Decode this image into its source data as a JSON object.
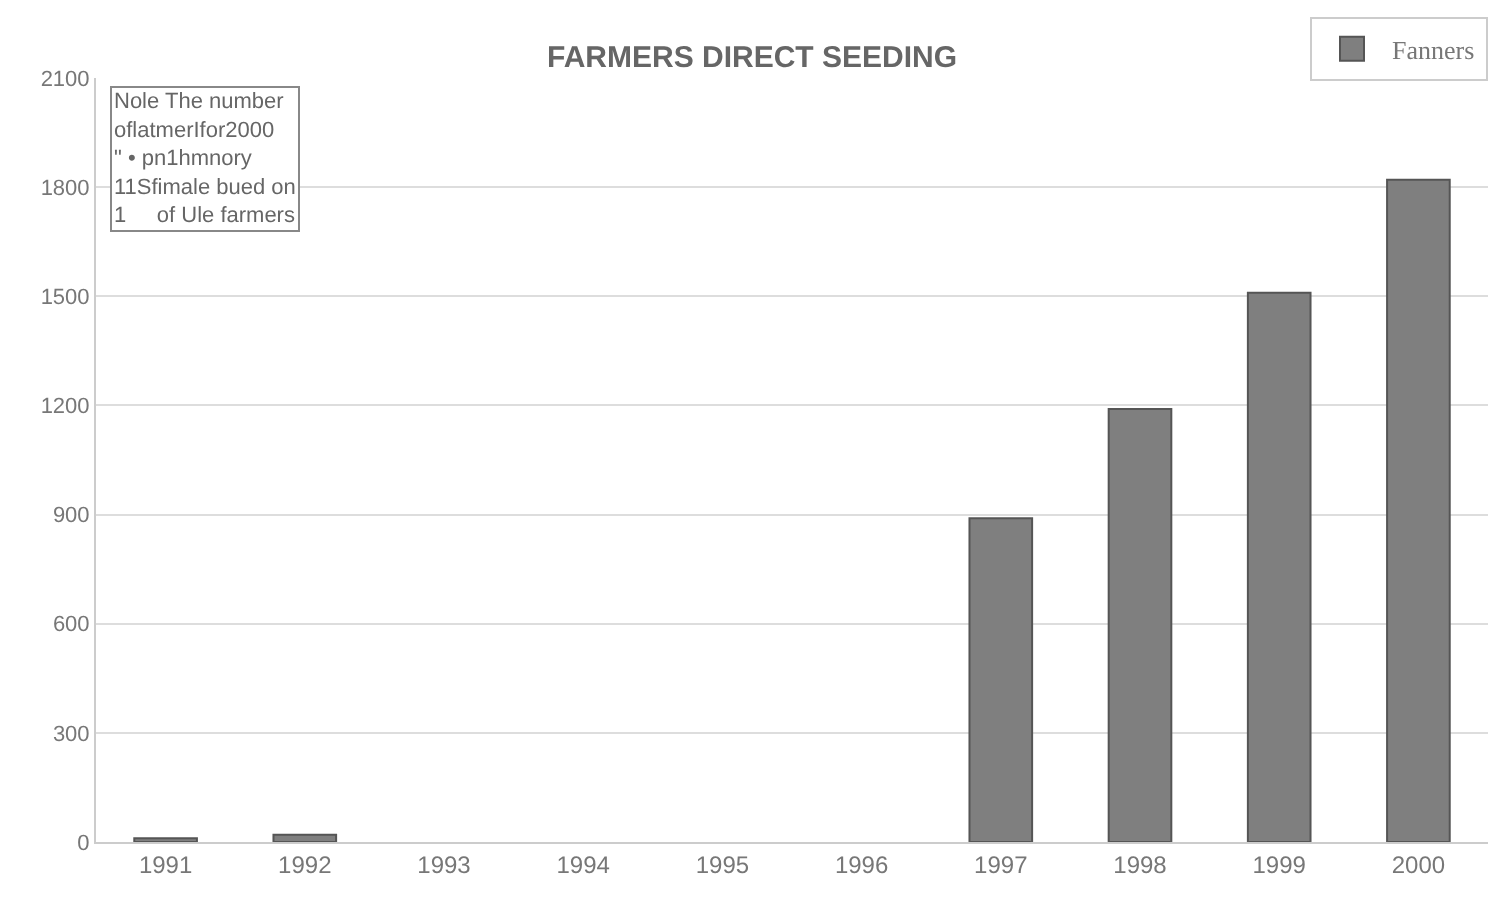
{
  "chart_data": {
    "type": "bar",
    "title": "FARMERS DIRECT SEEDING",
    "categories": [
      "1991",
      "1992",
      "1993",
      "1994",
      "1995",
      "1996",
      "1997",
      "1998",
      "1999",
      "2000"
    ],
    "series": [
      {
        "name": "Fanners",
        "color": "#7f7f7f",
        "values": [
          10,
          20,
          null,
          null,
          null,
          null,
          890,
          1190,
          1510,
          1820
        ]
      }
    ],
    "ylim": [
      0,
      2100
    ],
    "yticks": [
      0,
      300,
      600,
      900,
      1200,
      1500,
      1800,
      2100
    ],
    "grid": "y",
    "legend": "top right",
    "annotations": [
      "Nole The number\noflatmerIfor2000\n\" • pn1hmnory\n11Sfimale bued on\n1     of Ule farmers"
    ]
  }
}
